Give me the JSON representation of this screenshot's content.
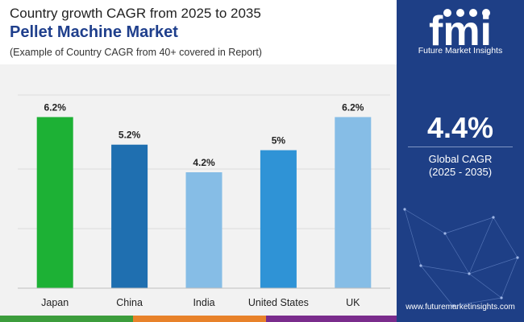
{
  "header": {
    "title_top": "Country growth CAGR from 2025 to 2035",
    "title_main": "Pellet Machine Market",
    "subtitle": "(Example of Country CAGR from 40+ covered in Report)"
  },
  "sidebar": {
    "logo_letters": "fmi",
    "logo_text": "Future Market Insights",
    "cagr_value": "4.4%",
    "cagr_label": "Global CAGR",
    "cagr_period": "(2025 - 2035)",
    "website": "www.futuremarketinsights.com"
  },
  "colors": {
    "sidebar_bg": "#1e3f86",
    "title_accent": "#1f3f8c",
    "chart_bg": "#f2f2f2",
    "strip": [
      "#3c9d3c",
      "#e8822a",
      "#7a2c8c",
      "#1e3f86"
    ]
  },
  "chart_data": {
    "type": "bar",
    "title": "Pellet Machine Market",
    "xlabel": "",
    "ylabel": "",
    "ylim": [
      0,
      7
    ],
    "grid": true,
    "categories": [
      "Japan",
      "China",
      "India",
      "United States",
      "UK"
    ],
    "values": [
      6.2,
      5.2,
      4.2,
      5,
      6.2
    ],
    "labels": [
      "6.2%",
      "5.2%",
      "4.2%",
      "5%",
      "6.2%"
    ],
    "colors": [
      "#1db135",
      "#1f6fb0",
      "#86bde6",
      "#2f93d6",
      "#86bde6"
    ]
  }
}
